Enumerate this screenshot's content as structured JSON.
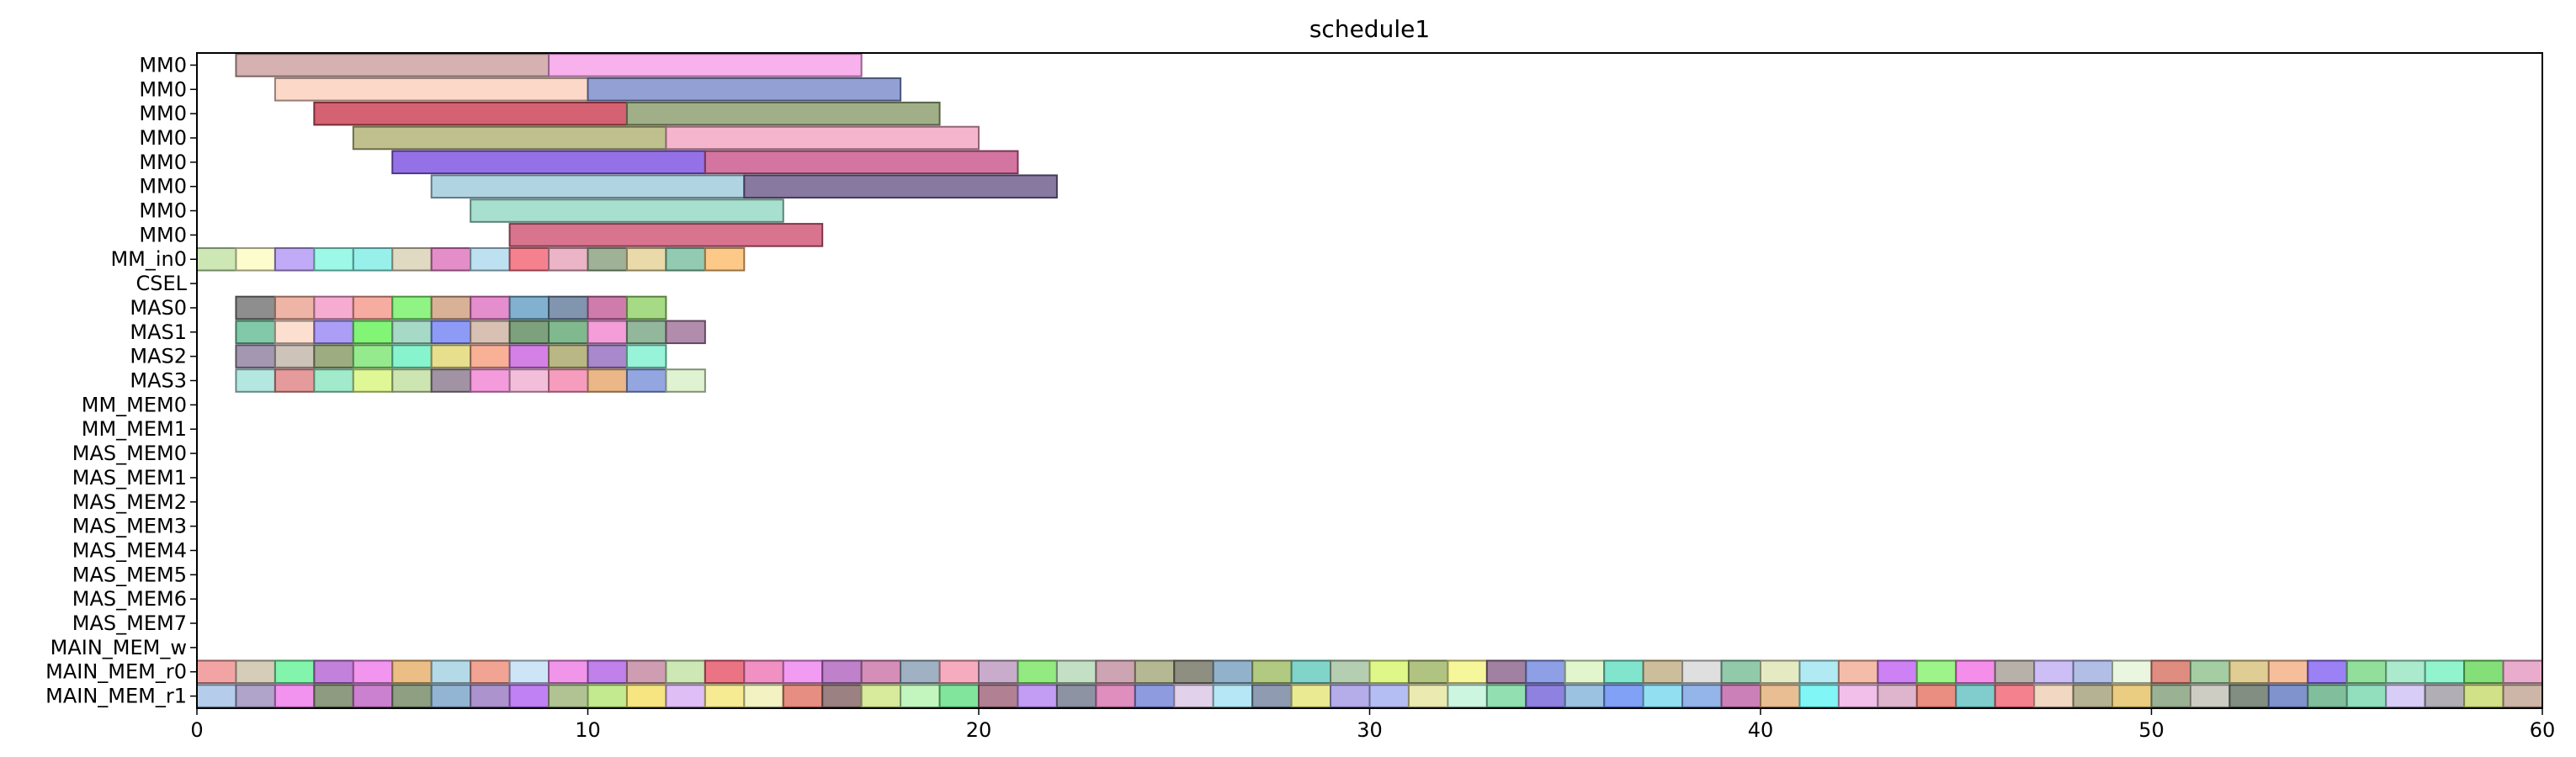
{
  "chart_data": {
    "type": "gantt",
    "title": "schedule1",
    "xlabel": "",
    "ylabel": "",
    "xlim": [
      0,
      60
    ],
    "x_ticks": [
      0,
      10,
      20,
      30,
      40,
      50,
      60
    ],
    "x_tick_labels": [
      "0",
      "10",
      "20",
      "30",
      "40",
      "50",
      "60"
    ],
    "rows": [
      "MM0",
      "MM0",
      "MM0",
      "MM0",
      "MM0",
      "MM0",
      "MM0",
      "MM0",
      "MM_in0",
      "CSEL",
      "MAS0",
      "MAS1",
      "MAS2",
      "MAS3",
      "MM_MEM0",
      "MM_MEM1",
      "MAS_MEM0",
      "MAS_MEM1",
      "MAS_MEM2",
      "MAS_MEM3",
      "MAS_MEM4",
      "MAS_MEM5",
      "MAS_MEM6",
      "MAS_MEM7",
      "MAIN_MEM_w",
      "MAIN_MEM_r0",
      "MAIN_MEM_r1"
    ],
    "tasks": [
      {
        "row": 0,
        "start": 1,
        "end": 9,
        "color": "#cfa3a3"
      },
      {
        "row": 0,
        "start": 9,
        "end": 17,
        "color": "#f7a3e9"
      },
      {
        "row": 1,
        "start": 2,
        "end": 10,
        "color": "#fcd1be"
      },
      {
        "row": 1,
        "start": 10,
        "end": 18,
        "color": "#7f8fcc"
      },
      {
        "row": 2,
        "start": 3,
        "end": 11,
        "color": "#cc4759"
      },
      {
        "row": 2,
        "start": 11,
        "end": 19,
        "color": "#8fa173"
      },
      {
        "row": 3,
        "start": 4,
        "end": 12,
        "color": "#b5b57a"
      },
      {
        "row": 3,
        "start": 12,
        "end": 20,
        "color": "#f2a8c4"
      },
      {
        "row": 4,
        "start": 5,
        "end": 13,
        "color": "#8258e3"
      },
      {
        "row": 4,
        "start": 13,
        "end": 21,
        "color": "#cc5c91"
      },
      {
        "row": 5,
        "start": 6,
        "end": 14,
        "color": "#a3ccde"
      },
      {
        "row": 5,
        "start": 14,
        "end": 22,
        "color": "#736191"
      },
      {
        "row": 6,
        "start": 7,
        "end": 15,
        "color": "#99dbc7"
      },
      {
        "row": 7,
        "start": 8,
        "end": 16,
        "color": "#d15c7a"
      },
      {
        "row": 8,
        "start": 0,
        "end": 1,
        "color": "#c4e3a8"
      },
      {
        "row": 8,
        "start": 1,
        "end": 2,
        "color": "#fcfcc4"
      },
      {
        "row": 8,
        "start": 2,
        "end": 3,
        "color": "#b69cf5"
      },
      {
        "row": 8,
        "start": 3,
        "end": 4,
        "color": "#8cf7e3"
      },
      {
        "row": 8,
        "start": 4,
        "end": 5,
        "color": "#85ede6"
      },
      {
        "row": 8,
        "start": 5,
        "end": 6,
        "color": "#dbd3b7"
      },
      {
        "row": 8,
        "start": 6,
        "end": 7,
        "color": "#de7abf"
      },
      {
        "row": 8,
        "start": 7,
        "end": 8,
        "color": "#b3dcf0"
      },
      {
        "row": 8,
        "start": 8,
        "end": 9,
        "color": "#f56b7a"
      },
      {
        "row": 8,
        "start": 9,
        "end": 10,
        "color": "#e8a7bd"
      },
      {
        "row": 8,
        "start": 10,
        "end": 11,
        "color": "#8ea384"
      },
      {
        "row": 8,
        "start": 11,
        "end": 12,
        "color": "#e6d39a"
      },
      {
        "row": 8,
        "start": 12,
        "end": 13,
        "color": "#7fc2a3"
      },
      {
        "row": 8,
        "start": 13,
        "end": 14,
        "color": "#fcc073"
      },
      {
        "row": 10,
        "start": 1,
        "end": 2,
        "color": "#7a7a7a"
      },
      {
        "row": 10,
        "start": 2,
        "end": 3,
        "color": "#eba897"
      },
      {
        "row": 10,
        "start": 3,
        "end": 4,
        "color": "#f59ec9"
      },
      {
        "row": 10,
        "start": 4,
        "end": 5,
        "color": "#f59e8f"
      },
      {
        "row": 10,
        "start": 5,
        "end": 6,
        "color": "#7bf26d"
      },
      {
        "row": 10,
        "start": 6,
        "end": 7,
        "color": "#d1a385"
      },
      {
        "row": 10,
        "start": 7,
        "end": 8,
        "color": "#e07ac4"
      },
      {
        "row": 10,
        "start": 8,
        "end": 9,
        "color": "#6ba3c7"
      },
      {
        "row": 10,
        "start": 9,
        "end": 10,
        "color": "#6b82a1"
      },
      {
        "row": 10,
        "start": 10,
        "end": 11,
        "color": "#c7659e"
      },
      {
        "row": 10,
        "start": 11,
        "end": 12,
        "color": "#96d46e"
      },
      {
        "row": 11,
        "start": 1,
        "end": 2,
        "color": "#6bbf99"
      },
      {
        "row": 11,
        "start": 2,
        "end": 3,
        "color": "#fcd9c7"
      },
      {
        "row": 11,
        "start": 3,
        "end": 4,
        "color": "#9e8cf5"
      },
      {
        "row": 11,
        "start": 4,
        "end": 5,
        "color": "#6cf25e"
      },
      {
        "row": 11,
        "start": 5,
        "end": 6,
        "color": "#96d4bd"
      },
      {
        "row": 11,
        "start": 6,
        "end": 7,
        "color": "#7a8af5"
      },
      {
        "row": 11,
        "start": 7,
        "end": 8,
        "color": "#d1b5a6"
      },
      {
        "row": 11,
        "start": 8,
        "end": 9,
        "color": "#668f66"
      },
      {
        "row": 11,
        "start": 9,
        "end": 10,
        "color": "#6bad7a"
      },
      {
        "row": 11,
        "start": 10,
        "end": 11,
        "color": "#f28cd1"
      },
      {
        "row": 11,
        "start": 11,
        "end": 12,
        "color": "#7faa88"
      },
      {
        "row": 11,
        "start": 12,
        "end": 13,
        "color": "#a3789e"
      },
      {
        "row": 12,
        "start": 1,
        "end": 2,
        "color": "#9385a3"
      },
      {
        "row": 12,
        "start": 2,
        "end": 3,
        "color": "#c4b8ad"
      },
      {
        "row": 12,
        "start": 3,
        "end": 4,
        "color": "#8c9e6b"
      },
      {
        "row": 12,
        "start": 4,
        "end": 5,
        "color": "#82e67a"
      },
      {
        "row": 12,
        "start": 5,
        "end": 6,
        "color": "#73f2c4"
      },
      {
        "row": 12,
        "start": 6,
        "end": 7,
        "color": "#e3d97a"
      },
      {
        "row": 12,
        "start": 7,
        "end": 8,
        "color": "#f7a385"
      },
      {
        "row": 12,
        "start": 8,
        "end": 9,
        "color": "#cc6be0"
      },
      {
        "row": 12,
        "start": 9,
        "end": 10,
        "color": "#adaa6e"
      },
      {
        "row": 12,
        "start": 10,
        "end": 11,
        "color": "#9a73c2"
      },
      {
        "row": 12,
        "start": 11,
        "end": 12,
        "color": "#85f2d1"
      },
      {
        "row": 13,
        "start": 1,
        "end": 2,
        "color": "#a8e3dc"
      },
      {
        "row": 13,
        "start": 2,
        "end": 3,
        "color": "#e08a8a"
      },
      {
        "row": 13,
        "start": 3,
        "end": 4,
        "color": "#91e6c2"
      },
      {
        "row": 13,
        "start": 4,
        "end": 5,
        "color": "#d9f783"
      },
      {
        "row": 13,
        "start": 5,
        "end": 6,
        "color": "#c4e0a3"
      },
      {
        "row": 13,
        "start": 6,
        "end": 7,
        "color": "#918094"
      },
      {
        "row": 13,
        "start": 7,
        "end": 8,
        "color": "#f28ad6"
      },
      {
        "row": 13,
        "start": 8,
        "end": 9,
        "color": "#f0b3d3"
      },
      {
        "row": 13,
        "start": 9,
        "end": 10,
        "color": "#f58cb3"
      },
      {
        "row": 13,
        "start": 10,
        "end": 11,
        "color": "#e8aa73"
      },
      {
        "row": 13,
        "start": 11,
        "end": 12,
        "color": "#8096d9"
      },
      {
        "row": 13,
        "start": 12,
        "end": 13,
        "color": "#d9f0c9"
      }
    ],
    "filled_rows": {
      "MAIN_MEM_r0": {
        "row": 25,
        "start": 0,
        "end": 60,
        "colors": [
          "#f09494",
          "#cfc4ab",
          "#6cf29c",
          "#b76bd4",
          "#ee82ec",
          "#e6b36e",
          "#a8d4e3",
          "#ee9480",
          "#c4e0f5",
          "#ee82e6",
          "#b56be6",
          "#c78ca3",
          "#c4e3a8",
          "#e85c6e",
          "#ee7cb8",
          "#ee8af0",
          "#b56bc2",
          "#cc7aab",
          "#8ea3b8",
          "#f59eb3",
          "#c09cc2",
          "#7fe66b",
          "#b8d9ba",
          "#c494a3",
          "#a8ad80",
          "#7a7a6b",
          "#7fa3c2",
          "#a3bf6b",
          "#6bccbf",
          "#a8c4a3",
          "#d9f573",
          "#a3b86b",
          "#f5f58a",
          "#8f6b91",
          "#7a8ee0",
          "#dcf5c4",
          "#6be0c4",
          "#c4b38a",
          "#d9d9d9",
          "#7fbf9c",
          "#e0e6b8",
          "#a3e6f0",
          "#f2b09a",
          "#c46bf2",
          "#8cf273",
          "#f27ae6",
          "#aba39a",
          "#c4b3f5",
          "#a3b3e0",
          "#e6f5d9",
          "#d9786b",
          "#94c493",
          "#d9c480",
          "#f5b38a",
          "#8a6bf2",
          "#7fd98a",
          "#9ce6c4",
          "#7ff2c4",
          "#6ed962",
          "#e69ec4"
        ]
      },
      "MAIN_MEM_r1": {
        "row": 26,
        "start": 0,
        "end": 60,
        "colors": [
          "#a8c4e6",
          "#a394c2",
          "#ee80ec",
          "#7a8a6b",
          "#c26bc7",
          "#7a8f6b",
          "#80a8cc",
          "#9e80c4",
          "#b56bf2",
          "#a3b880",
          "#b8e67a",
          "#f5e06b",
          "#d9b3f5",
          "#f5e680",
          "#f0f0b8",
          "#e07a6b",
          "#8a6b6b",
          "#d1e68a",
          "#b8f5b3",
          "#6be08a",
          "#a36b80",
          "#b88cf2",
          "#7a8094",
          "#d97ab3",
          "#7a8ad9",
          "#ddc9e6",
          "#a8e3f5",
          "#7a8aa3",
          "#e6e680",
          "#a89ee6",
          "#a8b3f0",
          "#e6e6a3",
          "#c4f5dc",
          "#7fd9a3",
          "#7a6bd9",
          "#8ab8dc",
          "#6b91f5",
          "#7fd9f0",
          "#80a8e6",
          "#c26bab",
          "#e6b380",
          "#6bf5f5",
          "#f0b3e6",
          "#d9a8c4",
          "#e67a6b",
          "#6bc4c4",
          "#f26b7a",
          "#f0d1b8",
          "#a8a380",
          "#e6c46b",
          "#8aa380",
          "#c4c4b8",
          "#6b7a6b",
          "#6b80c4",
          "#6bb38a",
          "#7fd9b3",
          "#d1c4f5",
          "#a3a0a8",
          "#c9dc73",
          "#c4a898"
        ]
      }
    }
  }
}
